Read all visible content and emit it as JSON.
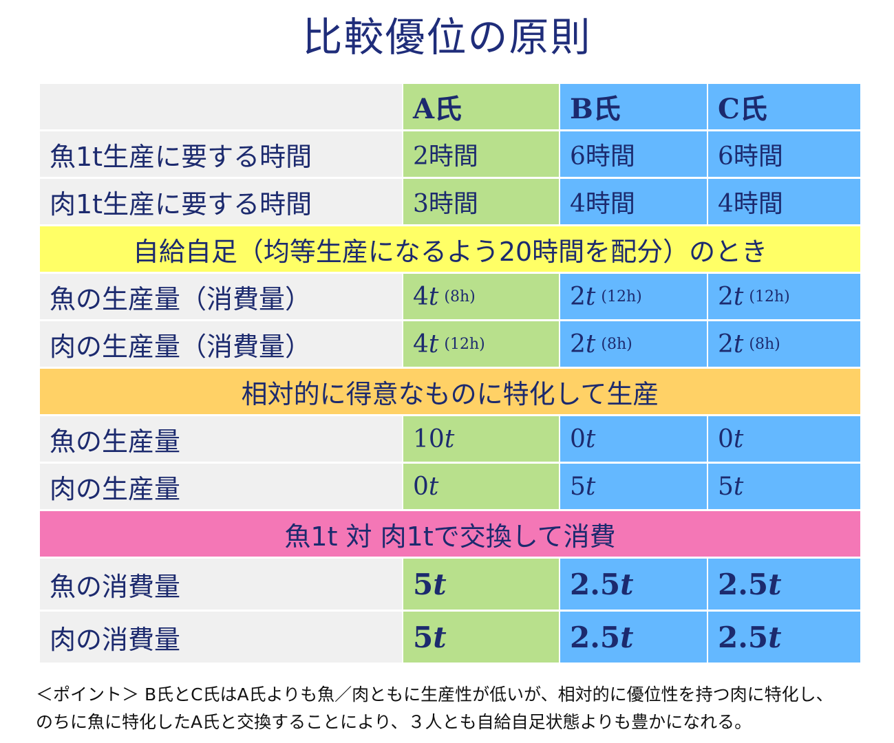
{
  "title": "比較優位の原則",
  "headers": [
    "A氏",
    "B氏",
    "C氏"
  ],
  "rows_time": [
    {
      "label": "魚1t生産に要する時間",
      "values": [
        "2時間",
        "6時間",
        "6時間"
      ]
    },
    {
      "label": "肉1t生産に要する時間",
      "values": [
        "3時間",
        "4時間",
        "4時間"
      ]
    }
  ],
  "section1": "自給自足（均等生産になるよう20時間を配分）のとき",
  "rows_self": [
    {
      "label": "魚の生産量（消費量）",
      "values": [
        {
          "amount": "4",
          "unit": "t",
          "hours": "(8h)"
        },
        {
          "amount": "2",
          "unit": "t",
          "hours": "(12h)"
        },
        {
          "amount": "2",
          "unit": "t",
          "hours": "(12h)"
        }
      ]
    },
    {
      "label": "肉の生産量（消費量）",
      "values": [
        {
          "amount": "4",
          "unit": "t",
          "hours": "(12h)"
        },
        {
          "amount": "2",
          "unit": "t",
          "hours": "(8h)"
        },
        {
          "amount": "2",
          "unit": "t",
          "hours": "(8h)"
        }
      ]
    }
  ],
  "section2": "相対的に得意なものに特化して生産",
  "rows_special": [
    {
      "label": "魚の生産量",
      "values": [
        {
          "amount": "10",
          "unit": "t"
        },
        {
          "amount": "0",
          "unit": "t"
        },
        {
          "amount": "0",
          "unit": "t"
        }
      ]
    },
    {
      "label": "肉の生産量",
      "values": [
        {
          "amount": "0",
          "unit": "t"
        },
        {
          "amount": "5",
          "unit": "t"
        },
        {
          "amount": "5",
          "unit": "t"
        }
      ]
    }
  ],
  "section3": "魚1t 対 肉1tで交換して消費",
  "rows_consume": [
    {
      "label": "魚の消費量",
      "values": [
        {
          "amount": "5",
          "unit": "t"
        },
        {
          "amount": "2.5",
          "unit": "t"
        },
        {
          "amount": "2.5",
          "unit": "t"
        }
      ]
    },
    {
      "label": "肉の消費量",
      "values": [
        {
          "amount": "5",
          "unit": "t"
        },
        {
          "amount": "2.5",
          "unit": "t"
        },
        {
          "amount": "2.5",
          "unit": "t"
        }
      ]
    }
  ],
  "note_line1": "＜ポイント＞ B氏とC氏はA氏よりも魚／肉ともに生産性が低いが、相対的に優位性を持つ肉に特化し、",
  "note_line2": "のちに魚に特化したA氏と交換することにより、３人とも自給自足状態よりも豊かになれる。",
  "colors": {
    "a_column": "#b8e08c",
    "bc_column": "#64b8ff",
    "section_yellow": "#ffff66",
    "section_orange": "#ffd166",
    "section_pink": "#f477b6",
    "label_bg": "#f0f0f0",
    "text": "#1c2a6e"
  }
}
